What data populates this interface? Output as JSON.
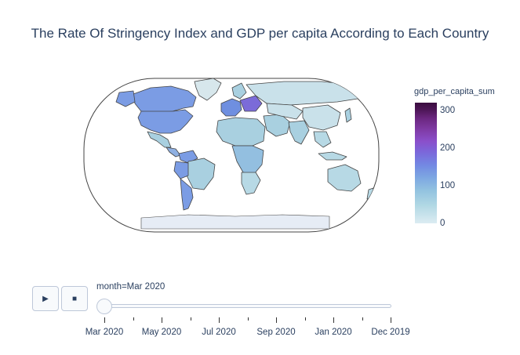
{
  "title": "The Rate Of Stringency Index and GDP per capita According to Each Country",
  "colorbar": {
    "title": "gdp_per_capita_sum",
    "ticks": [
      {
        "label": "0",
        "value": 0
      },
      {
        "label": "100",
        "value": 100
      },
      {
        "label": "200",
        "value": 200
      },
      {
        "label": "300",
        "value": 300
      }
    ],
    "max": 320
  },
  "controls": {
    "play_icon": "play-icon",
    "play_glyph": "▶",
    "stop_icon": "stop-icon",
    "stop_glyph": "■"
  },
  "slider": {
    "label": "month=Mar 2020",
    "selected_index": 0,
    "labels": [
      "Mar 2020",
      "May 2020",
      "Jul 2020",
      "Sep 2020",
      "Jan 2020",
      "Dec 2019"
    ]
  }
}
